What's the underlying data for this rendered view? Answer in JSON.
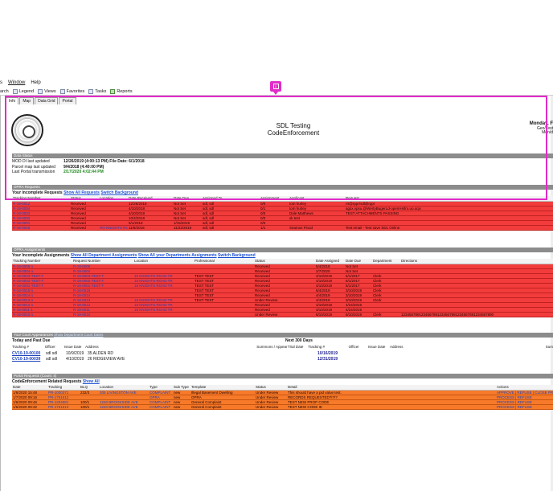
{
  "menu": [
    "s",
    "Window",
    "Help"
  ],
  "toolbar": {
    "search": "arch",
    "legend": "Legend",
    "views": "Views",
    "favorites": "Favorites",
    "tasks": "Tasks",
    "reports": "Reports"
  },
  "tabs": [
    "Info",
    "Map",
    "Data Grid",
    "Portal"
  ],
  "marker_label": "1",
  "header": {
    "title1": "SDL Testing",
    "title2": "CodeEnforcement",
    "day": "Monday, F",
    "right2": "Geo/Test",
    "right3": "Mon/d"
  },
  "data_status": {
    "section": "Data Status",
    "rows": [
      {
        "k": "MOD DI last updated",
        "v": "12/26/2019 (4:00:13 PM) File Date: 6/1/2018",
        "green": false
      },
      {
        "k": "Parcel map last updated",
        "v": "9/4/2018 (4:40:00 PM)",
        "green": false
      },
      {
        "k": "Last Portal transmission",
        "v": "2/17/2020 4:02:44 PM",
        "green": true
      }
    ]
  },
  "opra": {
    "section": "OPRA Requests",
    "title": "Your Incomplete Requests",
    "link1": "Show All Requests",
    "link2": "Switch Background",
    "headers": [
      "Tracking Number",
      "Status",
      "Location",
      "Date Received",
      "Date Due",
      "Assigned To",
      "Assignment",
      "Applicant",
      "Request"
    ],
    "rows": [
      [
        "R-19-0012",
        "Received",
        "",
        "12/26/2018",
        "Not Set",
        "sdl, sdl",
        "0/0",
        "tom hurley",
        "rrt@rppr/sdl@rppr"
      ],
      [
        "R-19-0004",
        "Received",
        "",
        "4/10/2018",
        "Not Set",
        "sdl, sdl",
        "0/1",
        "tom hurley",
        "agsx.vpsu.@WertyBugerLd-opemHsfro.uo.ocjx"
      ],
      [
        "R-19-0003",
        "Received",
        "",
        "4/10/2018",
        "Not Set",
        "sdl, sdl",
        "0/0",
        "Dale Matthews",
        "TEST ATTACHMENTS PASSING"
      ],
      [
        "R-19-0002",
        "Received",
        "",
        "10/4/2018",
        "Not Set",
        "sdl, sdl",
        "0/0",
        "sk test",
        ""
      ],
      [
        "R-19-0001",
        "Received",
        "",
        "5/1/2018",
        "1/15/2019",
        "sdl, sdl",
        "0/0",
        "",
        ""
      ],
      [
        "R-18-0015",
        "Received",
        "RO KNIGHTS ROADE",
        "11/8/2018",
        "11/22/2018",
        "sdl, sdl",
        "1/1",
        "Seamus Flood",
        "Test email - Test save SDL Online"
      ]
    ]
  },
  "assignments": {
    "section": "OPRA Assignments",
    "title": "Your Incomplete Assignments",
    "link1": "Show All Department Assignments",
    "link2": "Show All your Departments Assignments",
    "link3": "Switch Background",
    "headers": [
      "Tracking Number",
      "Request Number",
      "Location",
      "Professional",
      "Status",
      "Date Assigned",
      "Date Due",
      "Department",
      "Directions"
    ],
    "rows": [
      [
        "R-19-0005-1",
        "R-19-0005",
        "",
        "",
        "Received",
        "5/4/2018",
        "Not Set",
        "",
        ""
      ],
      [
        "R-19-0004-1",
        "R-19-0004",
        "",
        "",
        "Received",
        "2/7/2020",
        "Not Set",
        "",
        ""
      ],
      [
        "R-19-0003-TEST-T",
        "R-19-0003-TEST-T",
        "18 KNIGHTS ROAD TR",
        "TEST TEST",
        "Received",
        "4/10/2019",
        "6/1/2017",
        "Clerk",
        ""
      ],
      [
        "R-19-0002-TEST-T",
        "R-19-0002-TEST-T",
        "18 KNIGHTS ROAD TR",
        "TEST TEST",
        "Received",
        "4/10/2019",
        "6/1/2017",
        "Clerk",
        ""
      ],
      [
        "R-19-0001-TEST-T",
        "R-19-0001-TEST-T",
        "18 KNIGHTS ROAD TR",
        "TEST TEST",
        "Received",
        "4/10/2019",
        "6/1/2017",
        "Clerk",
        ""
      ],
      [
        "R-18-0015-1",
        "R-18-0015",
        "",
        "TEST TEST",
        "Received",
        "6/4/2019",
        "3/10/2019",
        "Clerk",
        ""
      ],
      [
        "R-18-0014-1",
        "R-18-0014",
        "",
        "TEST TEST",
        "Received",
        "4/4/2019",
        "3/10/2019",
        "Clerk",
        ""
      ],
      [
        "R-18-0013-1",
        "R-18-0013",
        "18 KNIGHTS ROAD TR",
        "TEST TEST",
        "Under Review",
        "4/4/2019",
        "3/10/2019",
        "Clerk",
        ""
      ],
      [
        "R-18-0012-1",
        "R-18-0012",
        "18 KNIGHTS ROAD TR",
        "",
        "Received",
        "4/10/2019",
        "4/24/2019",
        "",
        ""
      ],
      [
        "R-18-0011-1",
        "R-18-0011",
        "18 KNIGHTS ROAD TR",
        "",
        "Received",
        "4/10/2019",
        "4/24/2019",
        "",
        ""
      ],
      [
        "R-18-0010-1",
        "R-18-0010",
        "",
        "",
        "Under Review",
        "6/10/2019",
        "6/10/2019",
        "Clerk",
        "1234567891234567891234567891234567891234567890"
      ]
    ]
  },
  "court": {
    "section": "Your Court Appearances",
    "section_link": "Show Department Court Dates",
    "left_title": "Today and Past Due",
    "right_title": "Next 300 Days",
    "left_headers": [
      "Tracking #",
      "Officer",
      "Issue Date",
      "Address"
    ],
    "mid_headers": [
      "Summons / Appear",
      "Trial Date"
    ],
    "right_headers": [
      "Tracking #",
      "Officer",
      "Issue Date",
      "Address"
    ],
    "sum_label": "Sum",
    "rows": [
      {
        "track": "CV10-19-00100",
        "officer": "sdl sdl",
        "issue": "10/9/2019",
        "address": "35 ALDEN RD",
        "trial": "10/16/2019"
      },
      {
        "track": "CV10-19-00039",
        "officer": "sdl sdl",
        "issue": "4/10/2019",
        "address": "26 RIDGEVIEW AVE",
        "trial": "12/31/2019"
      }
    ]
  },
  "portal": {
    "section": "Portal Requests (Count: 4)",
    "title": "CodeEnforcement Related Requests",
    "link": "Show All",
    "headers": [
      "Date",
      "Tracking",
      "BLQ",
      "Location",
      "Type",
      "Sub Type",
      "Template",
      "Status",
      "Detail",
      "Actions"
    ],
    "rows": [
      [
        "1/8/2020 15:48",
        "PR-1000371",
        "232/3",
        "205 LIVINGSTON AVE",
        "COMPLAINT",
        "new",
        "Illegal Basement Dwelling",
        "Under Review",
        "This should have a pid value test.",
        "APPROVE | REFUSE | CLOSE PR"
      ],
      [
        "1/7/2020 09:16",
        "PR-1751612",
        "",
        "",
        "OPRA",
        "new",
        "OPRA",
        "Under Review",
        "RECORDS REQUESTED?!?!?",
        "PROCESS | REFUSE"
      ],
      [
        "1/6/2020 09:46",
        "PR-1204581",
        "100/1",
        "1240 BROOKSIDE AVE",
        "COMPLAINT",
        "new",
        "General Complaint",
        "Under Review",
        "TEST NEW PROP CODE",
        "PROCESS | REFUSE"
      ],
      [
        "1/6/2020 09:32",
        "PR-1751613",
        "100/1",
        "1240 BROOKSIDE AVE",
        "COMPLAINT",
        "new",
        "General Complaint",
        "Under Review",
        "TEST NEW CODE IE",
        "PROCESS | REFUSE"
      ]
    ]
  }
}
